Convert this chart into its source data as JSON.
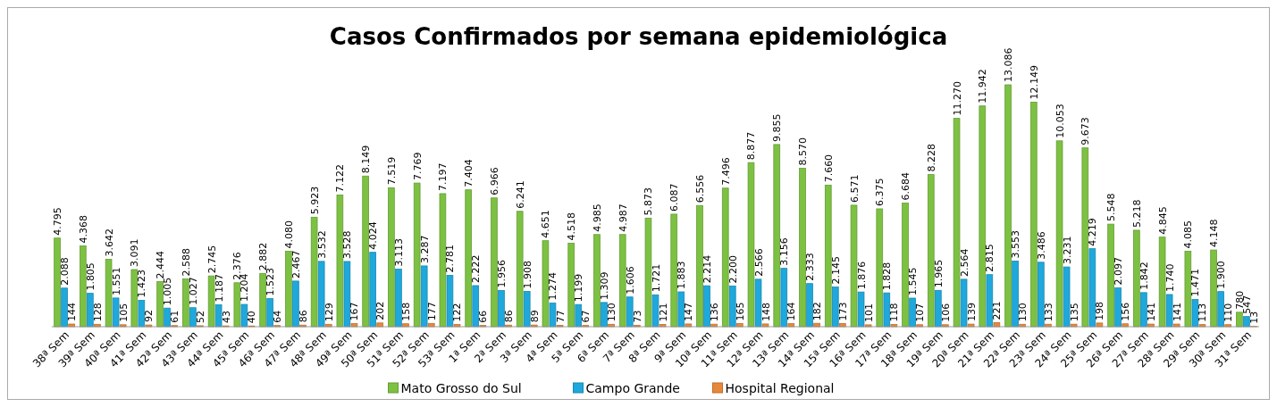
{
  "chart_data": {
    "type": "bar",
    "title": "Casos Confirmados por semana epidemiológica",
    "categories": [
      "38ª Sem",
      "39ª Sem",
      "40ª Sem",
      "41ª Sem",
      "42ª Sem",
      "43ª Sem",
      "44ª Sem",
      "45ª Sem",
      "46ª Sem",
      "47ª Sem",
      "48ª Sem",
      "49ª Sem",
      "50ª Sem",
      "51ª Sem",
      "52ª Sem",
      "53ª Sem",
      "1ª Sem",
      "2ª Sem",
      "3ª Sem",
      "4ª Sem",
      "5ª Sem",
      "6ª Sem",
      "7ª Sem",
      "8ª Sem",
      "9ª Sem",
      "10ª Sem",
      "11ª Sem",
      "12ª Sem",
      "13ª Sem",
      "14ª Sem",
      "15ª Sem",
      "16ª Sem",
      "17ª Sem",
      "18ª Sem",
      "19ª Sem",
      "20ª Sem",
      "21ª Sem",
      "22ª Sem",
      "23ª Sem",
      "24ª Sem",
      "25ª Sem",
      "26ª Sem",
      "27ª Sem",
      "28ª Sem",
      "29ª Sem",
      "30ª Sem",
      "31ª Sem"
    ],
    "series": [
      {
        "name": "Mato Grosso do Sul",
        "color": "#7dc142",
        "values": [
          4795,
          4368,
          3642,
          3091,
          2444,
          2588,
          2745,
          2376,
          2882,
          4080,
          5923,
          7122,
          8149,
          7519,
          7769,
          7197,
          7404,
          6966,
          6241,
          4651,
          4518,
          4985,
          4987,
          5873,
          6087,
          6556,
          7496,
          8877,
          9855,
          8570,
          7660,
          6571,
          6375,
          6684,
          8228,
          11270,
          11942,
          13086,
          12149,
          10053,
          9673,
          5548,
          5218,
          4845,
          4085,
          4148,
          780
        ],
        "value_labels": [
          "4.795",
          "4.368",
          "3.642",
          "3.091",
          "2.444",
          "2.588",
          "2.745",
          "2.376",
          "2.882",
          "4.080",
          "5.923",
          "7.122",
          "8.149",
          "7.519",
          "7.769",
          "7.197",
          "7.404",
          "6.966",
          "6.241",
          "4.651",
          "4.518",
          "4.985",
          "4.987",
          "5.873",
          "6.087",
          "6.556",
          "7.496",
          "8.877",
          "9.855",
          "8.570",
          "7.660",
          "6.571",
          "6.375",
          "6.684",
          "8.228",
          "11.270",
          "11.942",
          "13.086",
          "12.149",
          "10.053",
          "9.673",
          "5.548",
          "5.218",
          "4.845",
          "4.085",
          "4.148",
          "780"
        ]
      },
      {
        "name": "Campo Grande",
        "color": "#1fa8dc",
        "values": [
          2088,
          1805,
          1551,
          1423,
          1005,
          1027,
          1187,
          1204,
          1523,
          2467,
          3532,
          3528,
          4024,
          3113,
          3287,
          2781,
          2222,
          1956,
          1908,
          1274,
          1199,
          1309,
          1606,
          1721,
          1883,
          2214,
          2200,
          2566,
          3156,
          2333,
          2145,
          1876,
          1828,
          1545,
          1965,
          2564,
          2815,
          3553,
          3486,
          3231,
          4219,
          2097,
          1842,
          1740,
          1471,
          1900,
          547
        ],
        "value_labels": [
          "2.088",
          "1.805",
          "1.551",
          "1.423",
          "1.005",
          "1.027",
          "1.187",
          "1.204",
          "1.523",
          "2.467",
          "3.532",
          "3.528",
          "4.024",
          "3.113",
          "3.287",
          "2.781",
          "2.222",
          "1.956",
          "1.908",
          "1.274",
          "1.199",
          "1.309",
          "1.606",
          "1.721",
          "1.883",
          "2.214",
          "2.200",
          "2.566",
          "3.156",
          "2.333",
          "2.145",
          "1.876",
          "1.828",
          "1.545",
          "1.965",
          "2.564",
          "2.815",
          "3.553",
          "3.486",
          "3.231",
          "4.219",
          "2.097",
          "1.842",
          "1.740",
          "1.471",
          "1.900",
          "547"
        ]
      },
      {
        "name": "Hospital Regional",
        "color": "#e8893a",
        "values": [
          144,
          128,
          105,
          92,
          61,
          52,
          43,
          40,
          64,
          86,
          129,
          167,
          202,
          158,
          177,
          122,
          66,
          86,
          89,
          77,
          67,
          130,
          73,
          121,
          147,
          136,
          165,
          148,
          164,
          182,
          173,
          101,
          118,
          107,
          106,
          139,
          221,
          130,
          133,
          135,
          198,
          156,
          141,
          141,
          113,
          110,
          13
        ],
        "value_labels": [
          "144",
          "128",
          "105",
          "92",
          "61",
          "52",
          "43",
          "40",
          "64",
          "86",
          "129",
          "167",
          "202",
          "158",
          "177",
          "122",
          "66",
          "86",
          "89",
          "77",
          "67",
          "130",
          "73",
          "121",
          "147",
          "136",
          "165",
          "148",
          "164",
          "182",
          "173",
          "101",
          "118",
          "107",
          "106",
          "139",
          "221",
          "130",
          "133",
          "135",
          "198",
          "156",
          "141",
          "141",
          "113",
          "110",
          "13"
        ]
      }
    ],
    "legend": "bottom",
    "grid": false
  }
}
